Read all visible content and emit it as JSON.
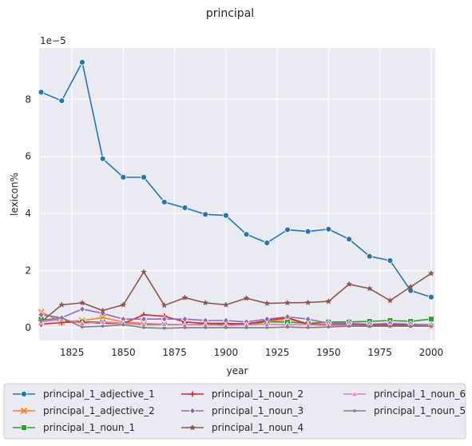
{
  "chart_data": {
    "type": "line",
    "title": "principal",
    "xlabel": "year",
    "ylabel": "lexicon%",
    "y_multiplier": "1e−5",
    "xlim": [
      1809,
      2002
    ],
    "ylim": [
      -0.45,
      9.8
    ],
    "xticks": [
      1825,
      1850,
      1875,
      1900,
      1925,
      1950,
      1975,
      2000
    ],
    "yticks": [
      0,
      2,
      4,
      6,
      8
    ],
    "grid": true,
    "legend_placement": "bottom",
    "series": [
      {
        "name": "principal_1_adjective_1",
        "color": "#1f77b4",
        "marker": "circle",
        "x": [
          1810,
          1820,
          1830,
          1840,
          1850,
          1860,
          1870,
          1880,
          1890,
          1900,
          1910,
          1920,
          1930,
          1940,
          1950,
          1960,
          1970,
          1980,
          1990,
          2000
        ],
        "values": [
          8.25,
          7.95,
          9.3,
          5.92,
          5.27,
          5.27,
          4.4,
          4.2,
          3.97,
          3.93,
          3.27,
          2.97,
          3.43,
          3.37,
          3.45,
          3.1,
          2.5,
          2.35,
          1.3,
          1.07
        ]
      },
      {
        "name": "principal_1_adjective_2",
        "color": "#ff7f0e",
        "marker": "x",
        "x": [
          1810,
          1820,
          1830,
          1840,
          1850,
          1860,
          1870,
          1880,
          1890,
          1900,
          1910,
          1920,
          1930,
          1940,
          1950,
          1960,
          1970,
          1980,
          1990,
          2000
        ],
        "values": [
          0.55,
          0.2,
          0.25,
          0.35,
          0.2,
          0.15,
          0.12,
          0.1,
          0.1,
          0.08,
          0.1,
          0.2,
          0.3,
          0.15,
          0.1,
          0.1,
          0.08,
          0.08,
          0.05,
          0.05
        ]
      },
      {
        "name": "principal_1_noun_1",
        "color": "#2ca02c",
        "marker": "square",
        "x": [
          1810,
          1820,
          1830,
          1840,
          1850,
          1860,
          1870,
          1880,
          1890,
          1900,
          1910,
          1920,
          1930,
          1940,
          1950,
          1960,
          1970,
          1980,
          1990,
          2000
        ],
        "values": [
          0.3,
          0.25,
          0.2,
          0.2,
          0.15,
          0.1,
          0.1,
          0.1,
          0.12,
          0.12,
          0.15,
          0.2,
          0.2,
          0.15,
          0.2,
          0.2,
          0.22,
          0.25,
          0.22,
          0.3
        ]
      },
      {
        "name": "principal_1_noun_2",
        "color": "#d62728",
        "marker": "plus",
        "x": [
          1810,
          1820,
          1830,
          1840,
          1850,
          1860,
          1870,
          1880,
          1890,
          1900,
          1910,
          1920,
          1930,
          1940,
          1950,
          1960,
          1970,
          1980,
          1990,
          2000
        ],
        "values": [
          0.12,
          0.18,
          0.2,
          0.15,
          0.15,
          0.45,
          0.4,
          0.2,
          0.15,
          0.15,
          0.12,
          0.25,
          0.35,
          0.12,
          0.1,
          0.1,
          0.08,
          0.1,
          0.08,
          0.05
        ]
      },
      {
        "name": "principal_1_noun_3",
        "color": "#9467bd",
        "marker": "diamond",
        "x": [
          1810,
          1820,
          1830,
          1840,
          1850,
          1860,
          1870,
          1880,
          1890,
          1900,
          1910,
          1920,
          1930,
          1940,
          1950,
          1960,
          1970,
          1980,
          1990,
          2000
        ],
        "values": [
          0.45,
          0.35,
          0.65,
          0.5,
          0.3,
          0.3,
          0.3,
          0.3,
          0.25,
          0.25,
          0.2,
          0.3,
          0.38,
          0.3,
          0.15,
          0.15,
          0.12,
          0.15,
          0.12,
          0.1
        ]
      },
      {
        "name": "principal_1_noun_4",
        "color": "#8c564b",
        "marker": "star",
        "x": [
          1810,
          1820,
          1830,
          1840,
          1850,
          1860,
          1870,
          1880,
          1890,
          1900,
          1910,
          1920,
          1930,
          1940,
          1950,
          1960,
          1970,
          1980,
          1990,
          2000
        ],
        "values": [
          0.2,
          0.8,
          0.87,
          0.6,
          0.8,
          1.95,
          0.78,
          1.05,
          0.87,
          0.8,
          1.03,
          0.85,
          0.87,
          0.88,
          0.92,
          1.52,
          1.37,
          0.95,
          1.43,
          1.9
        ]
      },
      {
        "name": "principal_1_noun_6",
        "color": "#e377c2",
        "marker": "triangle",
        "x": [
          1810,
          1820,
          1830,
          1840,
          1850,
          1860,
          1870,
          1880,
          1890,
          1900,
          1910,
          1920,
          1930,
          1940,
          1950,
          1960,
          1970,
          1980,
          1990,
          2000
        ],
        "values": [
          0.2,
          0.3,
          0.15,
          0.2,
          0.15,
          0.12,
          0.12,
          0.1,
          0.1,
          0.08,
          0.1,
          0.12,
          0.1,
          0.1,
          0.08,
          0.08,
          0.05,
          0.05,
          0.05,
          0.05
        ]
      },
      {
        "name": "principal_1_noun_5",
        "color": "#7f7f7f",
        "marker": "point",
        "x": [
          1810,
          1820,
          1830,
          1840,
          1850,
          1860,
          1870,
          1880,
          1890,
          1900,
          1910,
          1920,
          1930,
          1940,
          1950,
          1960,
          1970,
          1980,
          1990,
          2000
        ],
        "values": [
          0.25,
          0.35,
          0.02,
          0.05,
          0.1,
          0.0,
          -0.02,
          0.0,
          0.0,
          0.0,
          0.0,
          0.0,
          0.02,
          0.0,
          0.02,
          0.05,
          0.05,
          0.05,
          0.05,
          0.05
        ]
      }
    ],
    "legend_order": [
      0,
      1,
      2,
      3,
      4,
      5,
      6,
      7
    ]
  }
}
